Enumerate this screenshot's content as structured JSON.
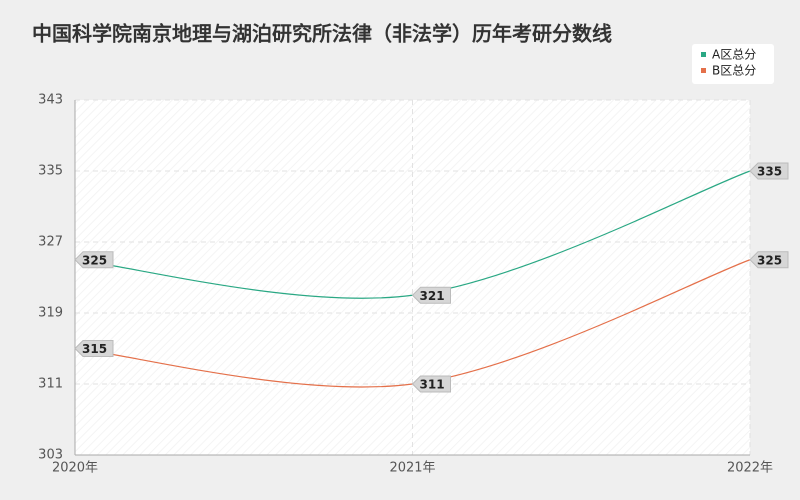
{
  "chart_data": {
    "type": "line",
    "title": "中国科学院南京地理与湖泊研究所法律（非法学）历年考研分数线",
    "categories": [
      "2020年",
      "2021年",
      "2022年"
    ],
    "series": [
      {
        "name": "A区总分",
        "color": "#2aa884",
        "values": [
          325,
          321,
          335
        ]
      },
      {
        "name": "B区总分",
        "color": "#e4704a",
        "values": [
          315,
          311,
          325
        ]
      }
    ],
    "ylim": [
      303,
      343
    ],
    "yticks": [
      303,
      311,
      319,
      327,
      335,
      343
    ],
    "grid": true,
    "legend": "top-right"
  }
}
